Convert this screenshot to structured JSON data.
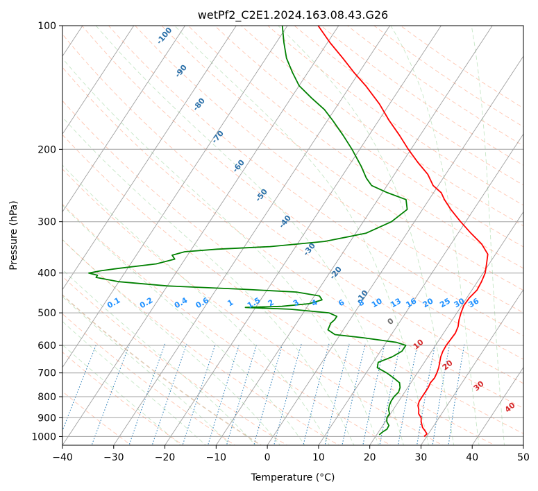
{
  "chart_data": {
    "type": "line",
    "subtype": "skew-t log-p diagram",
    "title": "wetPf2_C2E1.2024.163.08.43.G26",
    "xlabel": "Temperature (°C)",
    "ylabel": "Pressure (hPa)",
    "xlim": [
      -40,
      50
    ],
    "ylim": [
      1050,
      100
    ],
    "yscale": "log",
    "grid": true,
    "x_ticks": [
      -40,
      -30,
      -20,
      -10,
      0,
      10,
      20,
      30,
      40,
      50
    ],
    "y_ticks": [
      100,
      200,
      300,
      400,
      500,
      600,
      700,
      800,
      900,
      1000
    ],
    "series": [
      {
        "color": "#ff0000",
        "points": [
          [
            1000,
            29.5
          ],
          [
            985,
            29.7
          ],
          [
            970,
            29
          ],
          [
            950,
            28
          ],
          [
            920,
            27
          ],
          [
            900,
            26.5
          ],
          [
            880,
            25.5
          ],
          [
            860,
            25
          ],
          [
            840,
            24.3
          ],
          [
            820,
            24
          ],
          [
            800,
            24
          ],
          [
            780,
            24
          ],
          [
            760,
            24
          ],
          [
            740,
            23.8
          ],
          [
            720,
            24
          ],
          [
            700,
            23.8
          ],
          [
            680,
            23.5
          ],
          [
            660,
            23
          ],
          [
            640,
            22.5
          ],
          [
            620,
            22.2
          ],
          [
            600,
            22.1
          ],
          [
            580,
            22.2
          ],
          [
            560,
            22.3
          ],
          [
            540,
            22
          ],
          [
            520,
            21.3
          ],
          [
            500,
            20.8
          ],
          [
            480,
            20.4
          ],
          [
            460,
            20.5
          ],
          [
            440,
            21
          ],
          [
            420,
            20.8
          ],
          [
            400,
            20.4
          ],
          [
            380,
            19.5
          ],
          [
            360,
            18.5
          ],
          [
            340,
            16
          ],
          [
            320,
            12.5
          ],
          [
            300,
            9
          ],
          [
            280,
            5.5
          ],
          [
            265,
            3
          ],
          [
            255,
            1.5
          ],
          [
            245,
            -1
          ],
          [
            230,
            -3.5
          ],
          [
            215,
            -7
          ],
          [
            200,
            -10.5
          ],
          [
            185,
            -14
          ],
          [
            170,
            -18
          ],
          [
            155,
            -22
          ],
          [
            140,
            -27
          ],
          [
            130,
            -31
          ],
          [
            120,
            -35
          ],
          [
            110,
            -39.5
          ],
          [
            100,
            -44
          ]
        ]
      },
      {
        "color": "#008000",
        "points": [
          [
            990,
            20.5
          ],
          [
            975,
            20.8
          ],
          [
            960,
            21.3
          ],
          [
            940,
            21.2
          ],
          [
            920,
            20.3
          ],
          [
            900,
            19.8
          ],
          [
            880,
            19.8
          ],
          [
            860,
            19.1
          ],
          [
            840,
            18.7
          ],
          [
            820,
            18.5
          ],
          [
            800,
            18.5
          ],
          [
            780,
            18.8
          ],
          [
            760,
            18.5
          ],
          [
            740,
            17.8
          ],
          [
            720,
            16
          ],
          [
            700,
            14
          ],
          [
            680,
            11.5
          ],
          [
            660,
            11
          ],
          [
            640,
            13
          ],
          [
            620,
            14.2
          ],
          [
            600,
            14.2
          ],
          [
            590,
            12
          ],
          [
            575,
            5
          ],
          [
            565,
            -1
          ],
          [
            550,
            -3
          ],
          [
            530,
            -3.3
          ],
          [
            520,
            -3
          ],
          [
            510,
            -3
          ],
          [
            500,
            -5
          ],
          [
            490,
            -13
          ],
          [
            485,
            -22
          ],
          [
            482,
            -15
          ],
          [
            475,
            -10
          ],
          [
            465,
            -8
          ],
          [
            455,
            -9
          ],
          [
            445,
            -14
          ],
          [
            438,
            -25
          ],
          [
            430,
            -40
          ],
          [
            420,
            -50
          ],
          [
            410,
            -55
          ],
          [
            405,
            -55
          ],
          [
            400,
            -57
          ],
          [
            395,
            -55
          ],
          [
            390,
            -52
          ],
          [
            380,
            -45
          ],
          [
            370,
            -42
          ],
          [
            362,
            -43
          ],
          [
            355,
            -41
          ],
          [
            350,
            -35
          ],
          [
            345,
            -25
          ],
          [
            335,
            -15
          ],
          [
            320,
            -8
          ],
          [
            300,
            -4.5
          ],
          [
            280,
            -3
          ],
          [
            265,
            -4.5
          ],
          [
            255,
            -9
          ],
          [
            245,
            -13
          ],
          [
            235,
            -15
          ],
          [
            220,
            -17.5
          ],
          [
            200,
            -21.5
          ],
          [
            185,
            -25
          ],
          [
            170,
            -29
          ],
          [
            160,
            -32
          ],
          [
            150,
            -36
          ],
          [
            140,
            -40
          ],
          [
            130,
            -43
          ],
          [
            120,
            -46
          ],
          [
            110,
            -48.5
          ],
          [
            100,
            -51
          ]
        ]
      }
    ],
    "mixing_ratio_labels": [
      "0.1",
      "0.2",
      "0.4",
      "0.6",
      "1",
      "1.5",
      "2",
      "3",
      "4",
      "6",
      "8",
      "10",
      "13",
      "16",
      "20",
      "25",
      "30",
      "36"
    ],
    "dry_adiabat_labels": [
      "-100",
      "-90",
      "-80",
      "-70",
      "-60",
      "-50",
      "-40",
      "-30",
      "-20",
      "-10"
    ],
    "moist_adiabat_labels": [
      "0",
      "10",
      "20",
      "30",
      "40"
    ]
  }
}
